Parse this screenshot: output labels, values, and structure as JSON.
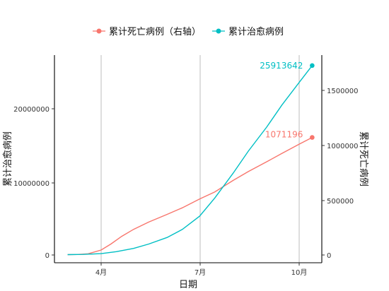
{
  "chart_data": {
    "type": "line",
    "title": "",
    "xlabel": "日期",
    "ylabel": "累计治愈病例",
    "ylabel_right": "累计死亡病例",
    "x_ticks": [
      "4月",
      "7月",
      "10月"
    ],
    "x_tick_dates": [
      "2020-04-01",
      "2020-07-01",
      "2020-10-01"
    ],
    "xlim": [
      "2020-03-01",
      "2020-10-20"
    ],
    "ylim_left": [
      0,
      27000000
    ],
    "ylim_right": [
      0,
      1800000
    ],
    "y_ticks_left": [
      0,
      10000000,
      20000000
    ],
    "y_ticks_right": [
      0,
      500000,
      1000000,
      1500000
    ],
    "y_tick_labels_left": [
      "0",
      "10000000",
      "20000000"
    ],
    "y_tick_labels_right": [
      "0",
      "500000",
      "1000000",
      "1500000"
    ],
    "grid": "vertical major gridlines only",
    "legend_position": "top",
    "series": [
      {
        "name": "累计死亡病例（右轴）",
        "axis": "right",
        "color": "#F8766D",
        "end_label": "1071196",
        "points": [
          [
            "2020-03-01",
            3000
          ],
          [
            "2020-03-10",
            4300
          ],
          [
            "2020-03-20",
            11000
          ],
          [
            "2020-04-01",
            45000
          ],
          [
            "2020-04-10",
            100000
          ],
          [
            "2020-04-20",
            170000
          ],
          [
            "2020-05-01",
            234000
          ],
          [
            "2020-05-15",
            300000
          ],
          [
            "2020-06-01",
            370000
          ],
          [
            "2020-06-15",
            430000
          ],
          [
            "2020-07-01",
            510000
          ],
          [
            "2020-07-15",
            575000
          ],
          [
            "2020-08-01",
            680000
          ],
          [
            "2020-08-15",
            760000
          ],
          [
            "2020-09-01",
            850000
          ],
          [
            "2020-09-15",
            925000
          ],
          [
            "2020-10-01",
            1010000
          ],
          [
            "2020-10-13",
            1071196
          ]
        ]
      },
      {
        "name": "累计治愈病例",
        "axis": "left",
        "color": "#00BFC4",
        "end_label": "25913642",
        "points": [
          [
            "2020-03-01",
            45000
          ],
          [
            "2020-03-15",
            75000
          ],
          [
            "2020-04-01",
            180000
          ],
          [
            "2020-04-15",
            450000
          ],
          [
            "2020-05-01",
            900000
          ],
          [
            "2020-05-15",
            1500000
          ],
          [
            "2020-06-01",
            2400000
          ],
          [
            "2020-06-15",
            3500000
          ],
          [
            "2020-07-01",
            5300000
          ],
          [
            "2020-07-15",
            7800000
          ],
          [
            "2020-08-01",
            11200000
          ],
          [
            "2020-08-15",
            14200000
          ],
          [
            "2020-09-01",
            17500000
          ],
          [
            "2020-09-15",
            20500000
          ],
          [
            "2020-10-01",
            23600000
          ],
          [
            "2020-10-13",
            25913642
          ]
        ]
      }
    ]
  }
}
